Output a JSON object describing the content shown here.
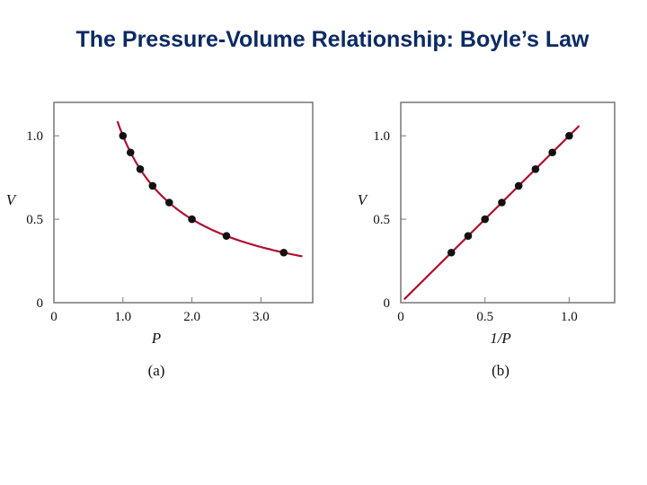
{
  "slide": {
    "title": "The Pressure-Volume Relationship: Boyle’s Law"
  },
  "colors": {
    "curve": "#b01030",
    "point": "#111111",
    "frame": "#777777",
    "plot_bg": "#ffffff"
  },
  "chart_data": [
    {
      "type": "scatter",
      "panel_label": "(a)",
      "xlabel": "P",
      "ylabel": "V",
      "xlim": [
        0,
        3.75
      ],
      "ylim": [
        0,
        1.2
      ],
      "x_ticks": [
        0,
        1.0,
        2.0,
        3.0
      ],
      "x_tick_labels": [
        "0",
        "1.0",
        "2.0",
        "3.0"
      ],
      "y_ticks": [
        0,
        0.5,
        1.0
      ],
      "y_tick_labels": [
        "0",
        "0.5",
        "1.0"
      ],
      "grid": false,
      "points": {
        "x": [
          1.0,
          1.11,
          1.25,
          1.43,
          1.67,
          2.0,
          2.5,
          3.33
        ],
        "y": [
          1.0,
          0.9,
          0.8,
          0.7,
          0.6,
          0.5,
          0.4,
          0.3
        ]
      },
      "fit_curve": {
        "relation": "V = 1/P",
        "x_range": [
          0.92,
          3.6
        ]
      }
    },
    {
      "type": "scatter",
      "panel_label": "(b)",
      "xlabel": "1/P",
      "ylabel": "V",
      "xlim": [
        0,
        1.27
      ],
      "ylim": [
        0,
        1.2
      ],
      "x_ticks": [
        0,
        0.5,
        1.0
      ],
      "x_tick_labels": [
        "0",
        "0.5",
        "1.0"
      ],
      "y_ticks": [
        0,
        0.5,
        1.0
      ],
      "y_tick_labels": [
        "0",
        "0.5",
        "1.0"
      ],
      "grid": false,
      "points": {
        "x": [
          0.3,
          0.4,
          0.5,
          0.6,
          0.7,
          0.8,
          0.9,
          1.0
        ],
        "y": [
          0.3,
          0.4,
          0.5,
          0.6,
          0.7,
          0.8,
          0.9,
          1.0
        ]
      },
      "fit_line": {
        "relation": "V = 1/P",
        "x_range": [
          0.02,
          1.06
        ]
      }
    }
  ]
}
